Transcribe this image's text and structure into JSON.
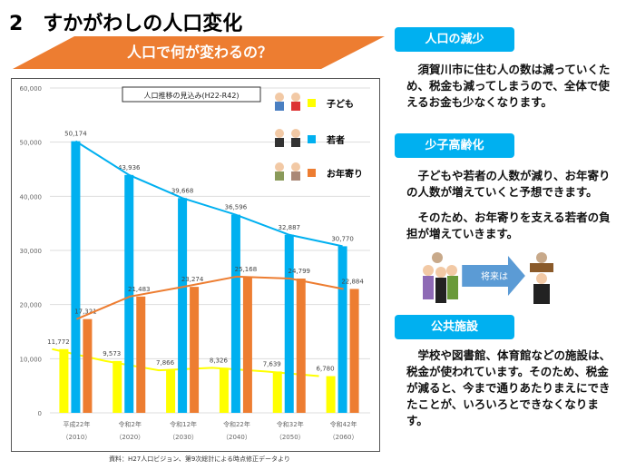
{
  "title": "2　すかがわしの人口変化",
  "banner": "人口で何が変わるの？",
  "sections": [
    {
      "heading": "人口の減少",
      "text": [
        "須賀川市に住む人の数は減っていくため、税金も減ってしまうので、全体で使えるお金も少なくなります。"
      ]
    },
    {
      "heading": "少子高齢化",
      "text": [
        "子どもや若者の人数が減り、お年寄りの人数が増えていくと予想できます。",
        "そのため、お年寄りを支える若者の負担が増えていきます。"
      ]
    },
    {
      "heading": "公共施設",
      "text": [
        "学校や図書館、体育館などの施設は、税金が使われています。そのため、税金が減ると、今まで通りあたりまえにできたことが、いろいろとできなくなります。"
      ]
    }
  ],
  "illustration": {
    "arrow_label": "将来は"
  },
  "source": "資料：H27人口ビジョン、第9次総計による時点修正データより",
  "colors": {
    "children": "#ffff00",
    "youth": "#00b0f0",
    "elderly": "#ed7d31",
    "header": "#00b0f0",
    "banner": "#ed7d31"
  },
  "chart_data": {
    "type": "bar",
    "title": "人口推移の見込み(H22-R42)",
    "categories": [
      "平成22年",
      "令和2年",
      "令和12年",
      "令和22年",
      "令和32年",
      "令和42年"
    ],
    "categories_sub": [
      "（2010）",
      "（2020）",
      "（2030）",
      "（2040）",
      "（2050）",
      "（2060）"
    ],
    "ylim": [
      0,
      60000
    ],
    "yticks": [
      "0",
      "10,000",
      "20,000",
      "30,000",
      "40,000",
      "50,000",
      "60,000"
    ],
    "grid": true,
    "legend_position": "top-right",
    "series": [
      {
        "name": "子ども",
        "values": [
          11772,
          9573,
          7866,
          8326,
          7639,
          6780
        ],
        "labels": [
          "11,772",
          "9,573",
          "7,866",
          "8,326",
          "7,639",
          "6,780"
        ]
      },
      {
        "name": "若者",
        "values": [
          50174,
          43936,
          39668,
          36596,
          32887,
          30770
        ],
        "labels": [
          "50,174",
          "43,936",
          "39,668",
          "36,596",
          "32,887",
          "30,770"
        ]
      },
      {
        "name": "お年寄り",
        "values": [
          17321,
          21483,
          23274,
          25168,
          24799,
          22884
        ],
        "labels": [
          "17,321",
          "21,483",
          "23,274",
          "25,168",
          "24,799",
          "22,884"
        ]
      }
    ]
  }
}
